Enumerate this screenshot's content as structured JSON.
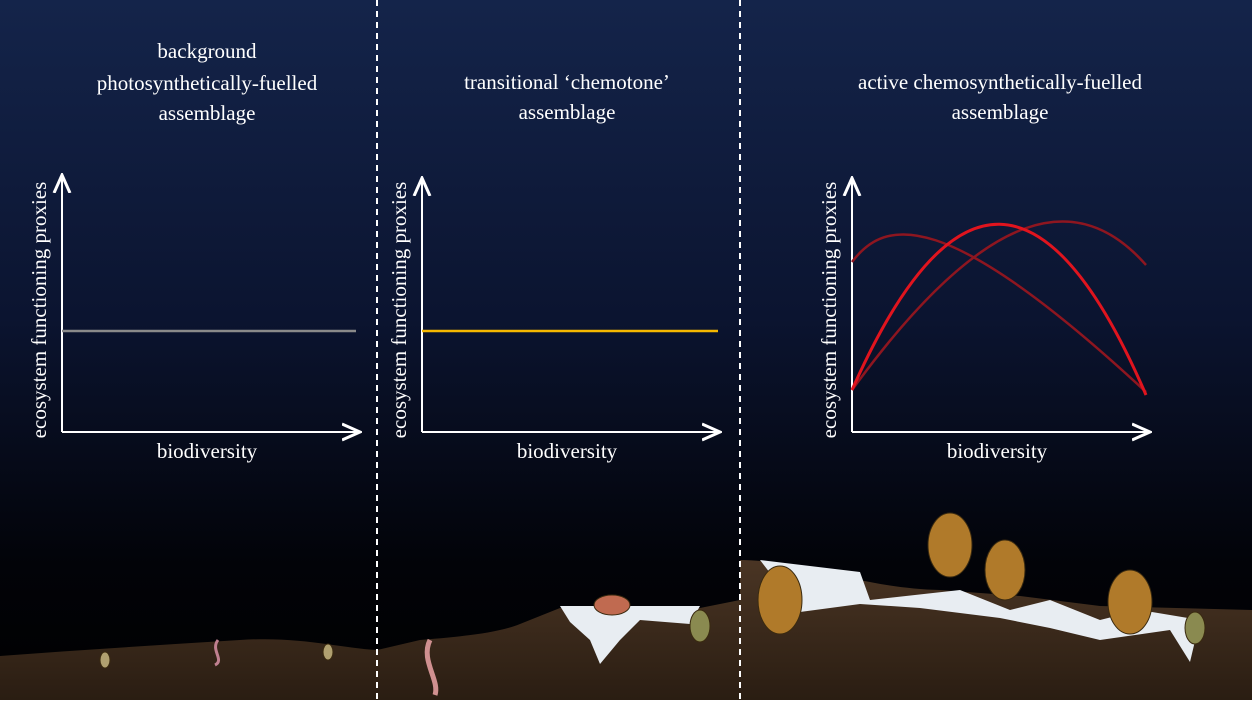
{
  "panels": [
    {
      "title": [
        "background",
        "photosynthetically-fuelled",
        "assemblage"
      ],
      "y_axis_label": "ecosystem functioning proxies",
      "x_axis_label": "biodiversity"
    },
    {
      "title": [
        "transitional ‘chemotone’",
        "assemblage"
      ],
      "y_axis_label": "ecosystem functioning proxies",
      "x_axis_label": "biodiversity"
    },
    {
      "title": [
        "active chemosynthetically-fuelled",
        "assemblage"
      ],
      "y_axis_label": "ecosystem functioning proxies",
      "x_axis_label": "biodiversity"
    }
  ]
}
